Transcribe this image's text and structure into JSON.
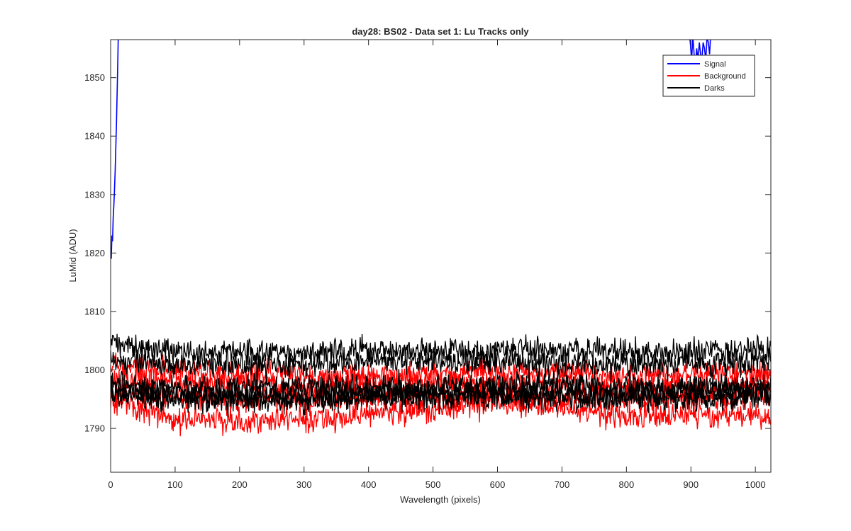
{
  "chart_data": {
    "type": "line",
    "title": "day28: BS02 - Data set 1: Lu Tracks only",
    "xlabel": "Wavelength (pixels)",
    "ylabel": "LuMid (ADU)",
    "xlim": [
      0,
      1024
    ],
    "ylim": [
      1782.5,
      1856.5
    ],
    "xticks": [
      0,
      100,
      200,
      300,
      400,
      500,
      600,
      700,
      800,
      900,
      1000
    ],
    "yticks": [
      1790,
      1800,
      1810,
      1820,
      1830,
      1840,
      1850
    ],
    "grid": false,
    "legend_position": "top-right",
    "legend": [
      {
        "label": "Signal",
        "color": "#0000ff"
      },
      {
        "label": "Background",
        "color": "#ff0000"
      },
      {
        "label": "Darks",
        "color": "#000000"
      }
    ],
    "noise_amplitude": 1.6,
    "signal_series": [
      {
        "label": "Signal",
        "color": "#0000ff",
        "segments": [
          {
            "x": [
              0,
              1,
              2,
              3,
              4,
              5,
              6,
              7,
              8,
              9,
              10,
              11,
              12
            ],
            "y": [
              1821,
              1819,
              1823,
              1822,
              1826,
              1828,
              1831,
              1834,
              1838,
              1842,
              1847,
              1852,
              1858
            ]
          },
          {
            "x": [
              897,
              899,
              901,
              903,
              905,
              907,
              909,
              911,
              913,
              915,
              917,
              919,
              921,
              923,
              925,
              927,
              929,
              931
            ],
            "y": [
              1858,
              1856,
              1853,
              1857,
              1854,
              1852,
              1855,
              1853,
              1856,
              1854,
              1853,
              1856,
              1855,
              1853,
              1857,
              1856,
              1854,
              1858
            ]
          }
        ]
      }
    ],
    "band_series": [
      {
        "label": "Background",
        "color": "#ff0000",
        "x": [
          0,
          100,
          200,
          300,
          400,
          500,
          600,
          700,
          800,
          900,
          1024
        ],
        "y": [
          1800.5,
          1799.5,
          1799.5,
          1799.0,
          1799.0,
          1799.5,
          1799.5,
          1799.5,
          1799.0,
          1799.5,
          1799.5
        ]
      },
      {
        "label": "Background",
        "color": "#ff0000",
        "x": [
          0,
          100,
          200,
          300,
          400,
          500,
          600,
          700,
          800,
          900,
          1024
        ],
        "y": [
          1798.0,
          1797.5,
          1797.5,
          1797.0,
          1797.0,
          1797.5,
          1797.5,
          1797.5,
          1797.0,
          1797.0,
          1797.5
        ]
      },
      {
        "label": "Background",
        "color": "#ff0000",
        "x": [
          0,
          100,
          200,
          300,
          400,
          500,
          600,
          700,
          800,
          900,
          1024
        ],
        "y": [
          1796.0,
          1795.5,
          1795.0,
          1795.0,
          1795.0,
          1795.5,
          1795.5,
          1795.0,
          1795.0,
          1795.0,
          1795.5
        ]
      },
      {
        "label": "Background",
        "color": "#ff0000",
        "x": [
          0,
          100,
          200,
          300,
          400,
          500,
          600,
          700,
          800,
          900,
          1024
        ],
        "y": [
          1795.0,
          1791.5,
          1791.5,
          1791.5,
          1792.5,
          1793.0,
          1794.5,
          1793.5,
          1792.0,
          1792.5,
          1792.0
        ]
      },
      {
        "label": "Darks",
        "color": "#000000",
        "x": [
          0,
          100,
          200,
          300,
          400,
          500,
          600,
          700,
          800,
          900,
          1024
        ],
        "y": [
          1804.0,
          1803.0,
          1803.0,
          1803.0,
          1803.5,
          1803.0,
          1803.5,
          1803.5,
          1803.0,
          1803.0,
          1803.5
        ]
      },
      {
        "label": "Darks",
        "color": "#000000",
        "x": [
          0,
          100,
          200,
          300,
          400,
          500,
          600,
          700,
          800,
          900,
          1024
        ],
        "y": [
          1801.5,
          1801.0,
          1801.0,
          1801.0,
          1801.5,
          1801.5,
          1801.5,
          1801.0,
          1801.0,
          1801.0,
          1801.5
        ]
      },
      {
        "label": "Darks",
        "color": "#000000",
        "x": [
          0,
          100,
          200,
          300,
          400,
          500,
          600,
          700,
          800,
          900,
          1024
        ],
        "y": [
          1797.5,
          1797.0,
          1797.0,
          1797.0,
          1797.0,
          1797.0,
          1797.5,
          1797.5,
          1797.0,
          1797.0,
          1797.5
        ]
      },
      {
        "label": "Darks",
        "color": "#000000",
        "x": [
          0,
          100,
          200,
          300,
          400,
          500,
          600,
          700,
          800,
          900,
          1024
        ],
        "y": [
          1796.0,
          1796.0,
          1795.5,
          1795.5,
          1796.0,
          1796.0,
          1796.0,
          1796.0,
          1795.5,
          1796.0,
          1796.0
        ]
      },
      {
        "label": "Darks",
        "color": "#000000",
        "x": [
          0,
          100,
          200,
          300,
          400,
          500,
          600,
          700,
          800,
          900,
          1024
        ],
        "y": [
          1795.5,
          1795.0,
          1795.0,
          1795.0,
          1795.5,
          1795.5,
          1795.5,
          1795.0,
          1795.0,
          1795.0,
          1795.5
        ]
      }
    ]
  }
}
